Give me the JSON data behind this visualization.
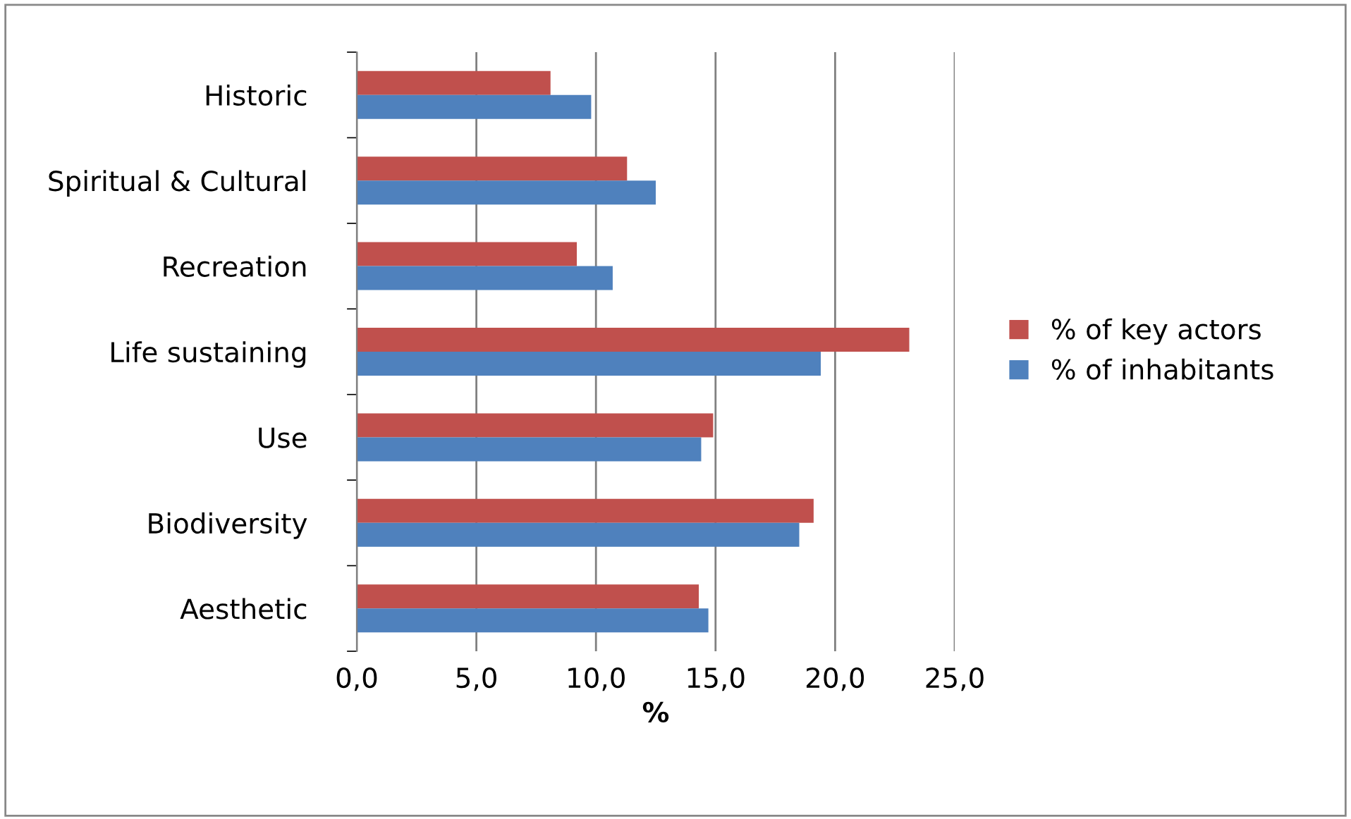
{
  "chart_data": {
    "type": "bar",
    "orientation": "horizontal",
    "xlabel": "%",
    "categories": [
      "Historic",
      "Spiritual & Cultural",
      "Recreation",
      "Life sustaining",
      "Use",
      "Biodiversity",
      "Aesthetic"
    ],
    "series": [
      {
        "name": "% of key actors",
        "color": "#c0504d",
        "values": [
          8.1,
          11.3,
          9.2,
          23.1,
          14.9,
          19.1,
          14.3
        ]
      },
      {
        "name": "% of inhabitants",
        "color": "#4f81bd",
        "values": [
          9.8,
          12.5,
          10.7,
          19.4,
          14.4,
          18.5,
          14.7
        ]
      }
    ],
    "xlim": [
      0,
      25
    ],
    "xticks": [
      {
        "value": 0,
        "label": "0,0"
      },
      {
        "value": 5,
        "label": "5,0"
      },
      {
        "value": 10,
        "label": "10,0"
      },
      {
        "value": 15,
        "label": "15,0"
      },
      {
        "value": 20,
        "label": "20,0"
      },
      {
        "value": 25,
        "label": "25,0"
      }
    ],
    "grid": "x",
    "legend": "right"
  }
}
